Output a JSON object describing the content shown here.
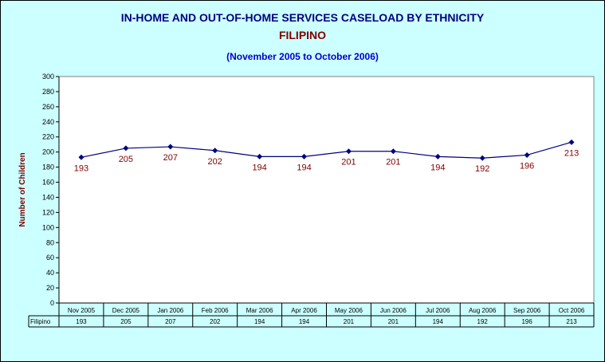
{
  "title": "IN-HOME AND OUT-OF-HOME SERVICES CASELOAD BY ETHNICITY",
  "subtitle": "FILIPINO",
  "period": "(November 2005 to October 2006)",
  "colors": {
    "background": "#ccffff",
    "plot_area": "#ffffff",
    "line": "#000080",
    "marker": "#000080",
    "data_label": "#800000",
    "title": "#000080",
    "subtitle": "#800000",
    "period": "#0000cc"
  },
  "chart_data": {
    "type": "line",
    "title": "IN-HOME AND OUT-OF-HOME SERVICES CASELOAD BY ETHNICITY",
    "subtitle": "FILIPINO",
    "ylabel": "Number of Children",
    "xlabel": "",
    "ylim": [
      0,
      300
    ],
    "ytick_step": 20,
    "grid": false,
    "legend": "data table below chart",
    "categories": [
      "Nov 2005",
      "Dec 2005",
      "Jan 2006",
      "Feb 2006",
      "Mar 2006",
      "Apr 2006",
      "May 2006",
      "Jun 2006",
      "Jul 2006",
      "Aug 2006",
      "Sep 2006",
      "Oct 2006"
    ],
    "series": [
      {
        "name": "Filipino",
        "values": [
          193,
          205,
          207,
          202,
          194,
          194,
          201,
          201,
          194,
          192,
          196,
          213
        ]
      }
    ]
  }
}
